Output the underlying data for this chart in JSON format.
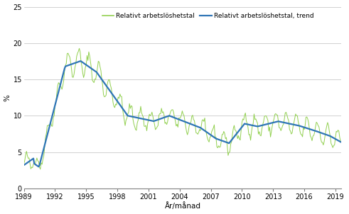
{
  "title": "",
  "ylabel": "%",
  "xlabel": "År/månad",
  "legend_line1": "Relativt arbetslöshetstal",
  "legend_line2": "Relativt arbetslöshetstal, trend",
  "color_raw": "#92d050",
  "color_trend": "#2e75b6",
  "ylim": [
    0,
    25
  ],
  "yticks": [
    0,
    5,
    10,
    15,
    20,
    25
  ],
  "xticks": [
    1989,
    1992,
    1995,
    1998,
    2001,
    2004,
    2007,
    2010,
    2013,
    2016,
    2019
  ],
  "background_color": "#ffffff",
  "grid_color": "#bfbfbf"
}
